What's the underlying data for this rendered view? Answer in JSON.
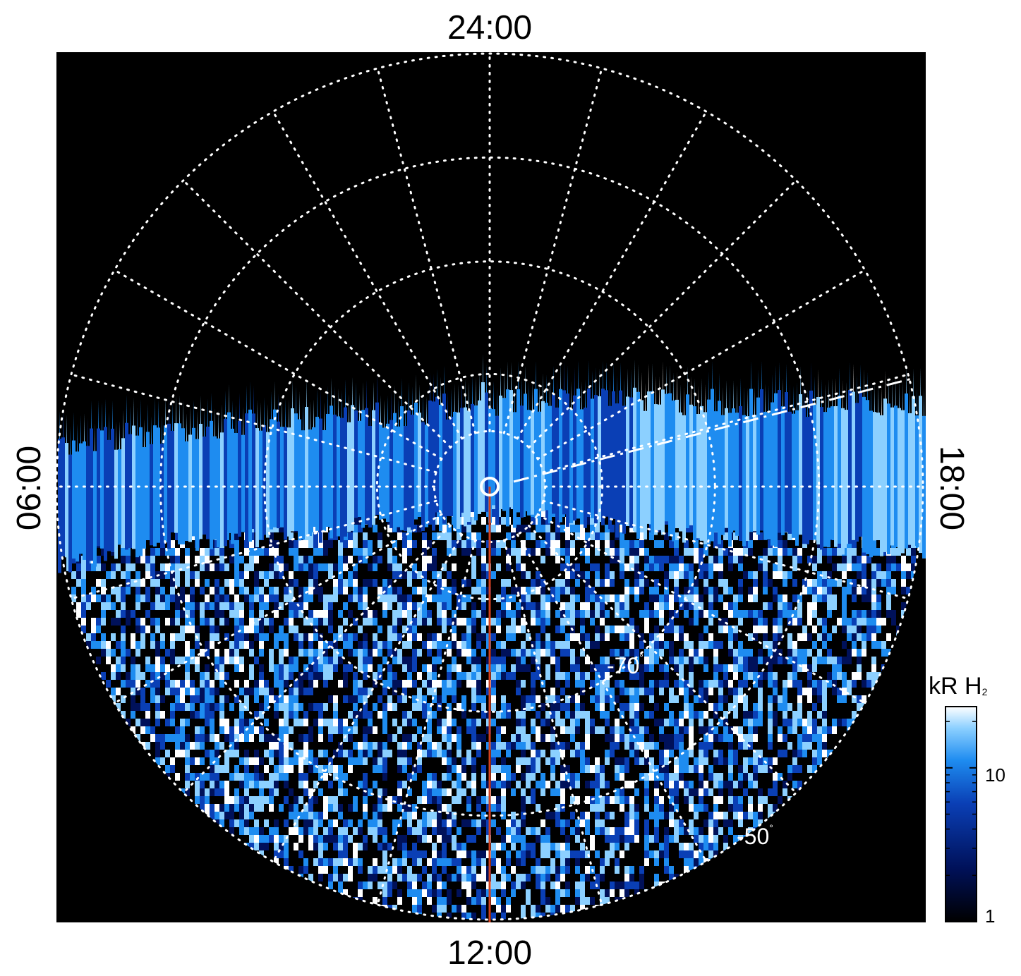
{
  "chart_data": {
    "type": "heatmap",
    "projection": "polar (auroral map)",
    "local_time_labels": {
      "top": "24:00",
      "bottom": "12:00",
      "left": "06:00",
      "right": "18:00"
    },
    "latitude_labels": [
      {
        "text": "-70",
        "degree": "°",
        "latitude": -70
      },
      {
        "text": "-50",
        "degree": "°",
        "latitude": -50
      }
    ],
    "colorbar": {
      "title": "kR H",
      "title_subscript": "2",
      "scale": "log",
      "range": [
        1,
        25
      ],
      "ticks": [
        {
          "value": 1,
          "label": "1"
        },
        {
          "value": 10,
          "label": "10"
        }
      ],
      "colors": [
        "#000000",
        "#00115a",
        "#0a3fb5",
        "#1e8cf0",
        "#8cd0ff",
        "#ffffff"
      ]
    },
    "background_color": "#000000",
    "grid": true,
    "grid_color": "#ffffff",
    "meridian_line_color": "#d2401e",
    "features": [
      "bright auroral emission band on the dusk side",
      "noisy emission over the dayside hemisphere",
      "dash-dot boundary line from pole toward dusk",
      "red line from pole to 12:00 (noon meridian)"
    ]
  }
}
